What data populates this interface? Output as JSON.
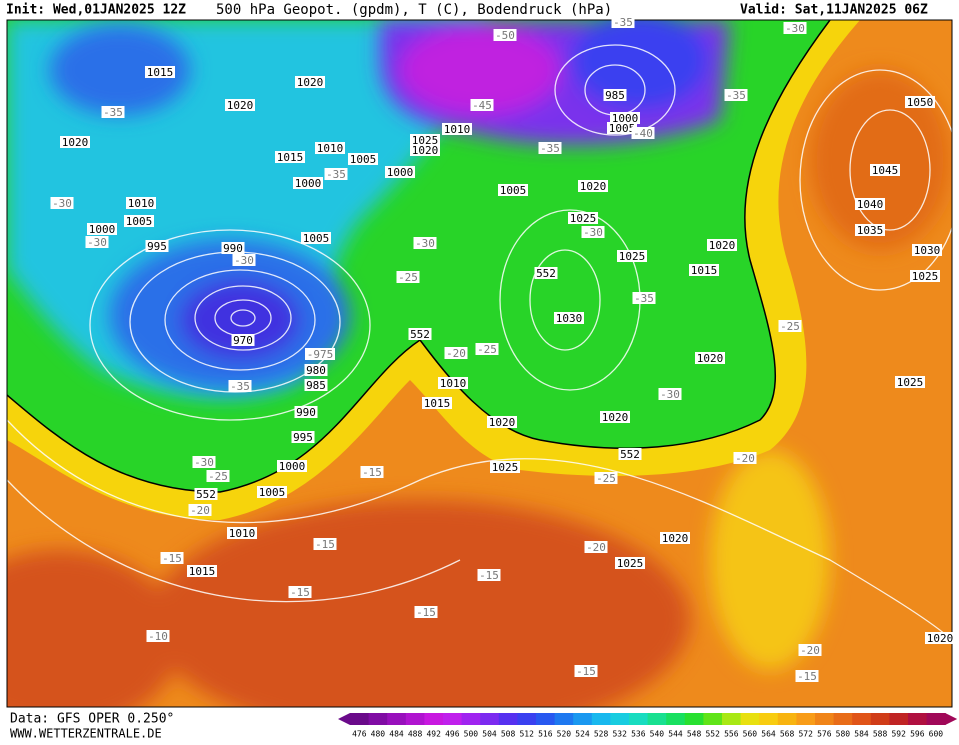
{
  "header": {
    "init": "Init: Wed,01JAN2025 12Z",
    "title": "500 hPa Geopot. (gpdm), T (C), Bodendruck (hPa)",
    "valid": "Valid: Sat,11JAN2025 06Z"
  },
  "map": {
    "labels": [
      1015,
      -35,
      1020,
      1020,
      1020,
      1015,
      1010,
      1005,
      1000,
      1000,
      -35,
      1005,
      1010,
      1005,
      -30,
      1000,
      -30,
      995,
      990,
      -30,
      970,
      -975,
      980,
      985,
      -35,
      990,
      995,
      1000,
      -30,
      -25,
      552,
      1005,
      -20,
      1010,
      -15,
      1015,
      -15,
      -15,
      -10,
      -15,
      -15,
      -15,
      -20,
      1020,
      1025,
      1025,
      -15,
      1020,
      1015,
      1010,
      -20,
      -25,
      552,
      -25,
      -30,
      1005,
      1020,
      1025,
      -30,
      1025,
      552,
      1015,
      1020,
      -35,
      1030,
      1020,
      -30,
      1020,
      552,
      -25,
      -20,
      -25,
      1025,
      1025,
      1030,
      1035,
      1040,
      1045,
      1050,
      -35,
      -30,
      -35,
      -45,
      -50,
      -35,
      985,
      1000,
      1005,
      -40,
      1010,
      1025,
      1020,
      -20,
      -15,
      1020
    ]
  },
  "footer": {
    "source": "Data: GFS OPER 0.250°",
    "website": "WWW.WETTERZENTRALE.DE"
  },
  "legend": {
    "labels": [
      476,
      480,
      484,
      488,
      492,
      496,
      500,
      504,
      508,
      512,
      516,
      520,
      524,
      528,
      532,
      536,
      540,
      544,
      548,
      552,
      556,
      560,
      564,
      568,
      572,
      576,
      580,
      584,
      588,
      592,
      596,
      600
    ],
    "colors": [
      "#6a0a8a",
      "#800ca4",
      "#9810bc",
      "#b014d0",
      "#c818e0",
      "#c020ec",
      "#a024f0",
      "#7c2af0",
      "#5630f0",
      "#3a40f0",
      "#2858f0",
      "#1e78f0",
      "#1a98f0",
      "#18b8ee",
      "#18cce0",
      "#18dcc0",
      "#18e090",
      "#18e060",
      "#28e030",
      "#60e418",
      "#a8e814",
      "#e8e010",
      "#f8cc10",
      "#f8b410",
      "#f89c18",
      "#f08418",
      "#e86c18",
      "#e05418",
      "#d03c18",
      "#c02424",
      "#b01040",
      "#a00858"
    ]
  }
}
